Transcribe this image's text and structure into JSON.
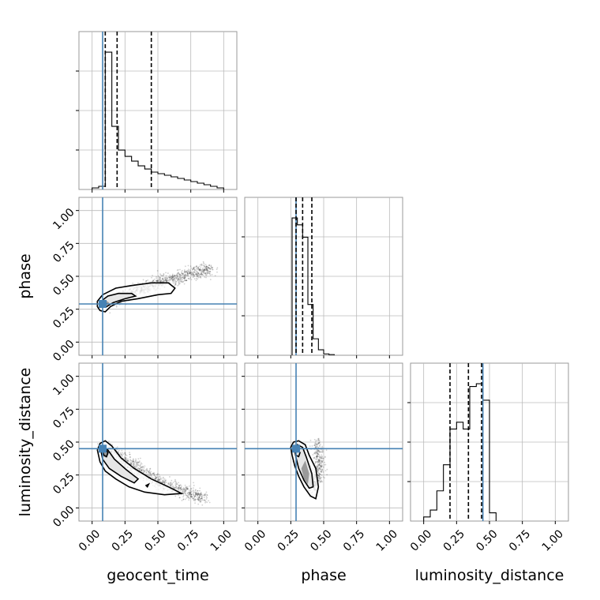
{
  "chart_data": {
    "type": "corner",
    "parameters": [
      "geocent_time",
      "phase",
      "luminosity_distance"
    ],
    "axis_range": [
      -0.1,
      1.1
    ],
    "tick_labels": [
      "0.00",
      "0.25",
      "0.50",
      "0.75",
      "1.00"
    ],
    "tick_values": [
      0,
      0.25,
      0.5,
      0.75,
      1.0
    ],
    "grid": true,
    "injection": {
      "color": "#4682b4",
      "geocent_time": 0.08,
      "phase": 0.29,
      "luminosity_distance": 0.45
    },
    "marginals": {
      "geocent_time": {
        "quantile_lines": [
          0.1,
          0.19,
          0.45
        ],
        "bin_edges": [
          0.0,
          0.05,
          0.1,
          0.15,
          0.2,
          0.25,
          0.3,
          0.35,
          0.4,
          0.45,
          0.5,
          0.55,
          0.6,
          0.65,
          0.7,
          0.75,
          0.8,
          0.85,
          0.9,
          0.95,
          1.0
        ],
        "counts": [
          0.01,
          0.02,
          0.87,
          0.4,
          0.25,
          0.21,
          0.18,
          0.15,
          0.13,
          0.11,
          0.1,
          0.09,
          0.08,
          0.07,
          0.06,
          0.05,
          0.04,
          0.03,
          0.02,
          0.01
        ]
      },
      "phase": {
        "quantile_lines": [
          0.29,
          0.34,
          0.41
        ],
        "bin_edges": [
          0.26,
          0.3,
          0.34,
          0.38,
          0.42,
          0.46,
          0.5,
          0.54,
          0.58
        ],
        "counts": [
          1.0,
          0.95,
          0.86,
          0.37,
          0.12,
          0.04,
          0.01,
          0.005
        ]
      },
      "luminosity_distance": {
        "quantile_lines": [
          0.2,
          0.34,
          0.44
        ],
        "bin_edges": [
          0.0,
          0.05,
          0.1,
          0.15,
          0.2,
          0.25,
          0.3,
          0.35,
          0.4,
          0.45,
          0.5,
          0.55
        ],
        "counts": [
          0.03,
          0.08,
          0.22,
          0.41,
          0.67,
          0.72,
          0.67,
          0.98,
          1.0,
          0.88,
          0.06
        ]
      }
    },
    "pairs": [
      {
        "x": "geocent_time",
        "y": "phase",
        "contours": [
          [
            [
              0.04,
              0.27
            ],
            [
              0.06,
              0.24
            ],
            [
              0.1,
              0.23
            ],
            [
              0.14,
              0.27
            ],
            [
              0.22,
              0.31
            ],
            [
              0.35,
              0.33
            ],
            [
              0.5,
              0.36
            ],
            [
              0.6,
              0.37
            ],
            [
              0.63,
              0.41
            ],
            [
              0.58,
              0.45
            ],
            [
              0.45,
              0.45
            ],
            [
              0.3,
              0.43
            ],
            [
              0.18,
              0.41
            ],
            [
              0.08,
              0.36
            ],
            [
              0.04,
              0.31
            ]
          ],
          [
            [
              0.08,
              0.28
            ],
            [
              0.11,
              0.27
            ],
            [
              0.16,
              0.3
            ],
            [
              0.25,
              0.33
            ],
            [
              0.33,
              0.35
            ],
            [
              0.3,
              0.37
            ],
            [
              0.2,
              0.37
            ],
            [
              0.12,
              0.35
            ],
            [
              0.08,
              0.32
            ]
          ],
          [
            [
              0.075,
              0.28
            ],
            [
              0.095,
              0.275
            ],
            [
              0.11,
              0.29
            ],
            [
              0.095,
              0.305
            ],
            [
              0.075,
              0.3
            ]
          ]
        ],
        "density_core": [
          [
            0.07,
            0.28
          ],
          [
            0.1,
            0.27
          ],
          [
            0.13,
            0.3
          ],
          [
            0.1,
            0.32
          ],
          [
            0.07,
            0.31
          ]
        ],
        "scatter_center": [
          [
            0.15,
            0.31
          ],
          [
            0.3,
            0.38
          ],
          [
            0.45,
            0.43
          ],
          [
            0.6,
            0.48
          ],
          [
            0.75,
            0.52
          ],
          [
            0.9,
            0.56
          ]
        ],
        "scatter_spread": [
          0.07,
          0.055
        ]
      },
      {
        "x": "geocent_time",
        "y": "luminosity_distance",
        "contours": [
          [
            [
              0.04,
              0.44
            ],
            [
              0.06,
              0.49
            ],
            [
              0.1,
              0.51
            ],
            [
              0.15,
              0.47
            ],
            [
              0.22,
              0.38
            ],
            [
              0.32,
              0.3
            ],
            [
              0.45,
              0.22
            ],
            [
              0.58,
              0.16
            ],
            [
              0.68,
              0.11
            ],
            [
              0.55,
              0.1
            ],
            [
              0.4,
              0.12
            ],
            [
              0.28,
              0.16
            ],
            [
              0.18,
              0.22
            ],
            [
              0.1,
              0.28
            ],
            [
              0.06,
              0.35
            ]
          ],
          [
            [
              0.07,
              0.42
            ],
            [
              0.09,
              0.46
            ],
            [
              0.12,
              0.44
            ],
            [
              0.17,
              0.37
            ],
            [
              0.26,
              0.29
            ],
            [
              0.35,
              0.22
            ],
            [
              0.32,
              0.19
            ],
            [
              0.22,
              0.24
            ],
            [
              0.13,
              0.3
            ],
            [
              0.08,
              0.37
            ]
          ],
          [
            [
              0.08,
              0.43
            ],
            [
              0.1,
              0.45
            ],
            [
              0.12,
              0.42
            ],
            [
              0.11,
              0.39
            ],
            [
              0.09,
              0.4
            ]
          ],
          [
            [
              0.41,
              0.17
            ],
            [
              0.43,
              0.18
            ],
            [
              0.42,
              0.16
            ]
          ]
        ],
        "density_core": [
          [
            0.08,
            0.42
          ],
          [
            0.1,
            0.46
          ],
          [
            0.13,
            0.42
          ],
          [
            0.11,
            0.38
          ],
          [
            0.09,
            0.39
          ]
        ],
        "scatter_center": [
          [
            0.12,
            0.45
          ],
          [
            0.25,
            0.35
          ],
          [
            0.4,
            0.26
          ],
          [
            0.55,
            0.18
          ],
          [
            0.7,
            0.12
          ],
          [
            0.85,
            0.08
          ]
        ],
        "scatter_spread": [
          0.07,
          0.055
        ]
      },
      {
        "x": "phase",
        "y": "luminosity_distance",
        "contours": [
          [
            [
              0.25,
              0.46
            ],
            [
              0.27,
              0.5
            ],
            [
              0.31,
              0.51
            ],
            [
              0.36,
              0.48
            ],
            [
              0.39,
              0.4
            ],
            [
              0.44,
              0.3
            ],
            [
              0.46,
              0.16
            ],
            [
              0.44,
              0.07
            ],
            [
              0.4,
              0.09
            ],
            [
              0.35,
              0.16
            ],
            [
              0.31,
              0.24
            ],
            [
              0.28,
              0.32
            ],
            [
              0.26,
              0.4
            ]
          ],
          [
            [
              0.28,
              0.44
            ],
            [
              0.3,
              0.48
            ],
            [
              0.34,
              0.46
            ],
            [
              0.37,
              0.38
            ],
            [
              0.41,
              0.26
            ],
            [
              0.42,
              0.16
            ],
            [
              0.39,
              0.15
            ],
            [
              0.35,
              0.21
            ],
            [
              0.31,
              0.3
            ],
            [
              0.29,
              0.38
            ]
          ],
          [
            [
              0.28,
              0.43
            ],
            [
              0.3,
              0.45
            ],
            [
              0.32,
              0.42
            ],
            [
              0.31,
              0.39
            ],
            [
              0.29,
              0.4
            ]
          ]
        ],
        "density_core": [
          [
            0.33,
            0.3
          ],
          [
            0.36,
            0.36
          ],
          [
            0.39,
            0.26
          ],
          [
            0.38,
            0.18
          ],
          [
            0.35,
            0.22
          ]
        ],
        "scatter_center": [
          [
            0.3,
            0.46
          ],
          [
            0.34,
            0.36
          ],
          [
            0.38,
            0.26
          ],
          [
            0.42,
            0.16
          ],
          [
            0.47,
            0.3
          ],
          [
            0.45,
            0.5
          ]
        ],
        "scatter_spread": [
          0.045,
          0.07
        ]
      }
    ]
  }
}
